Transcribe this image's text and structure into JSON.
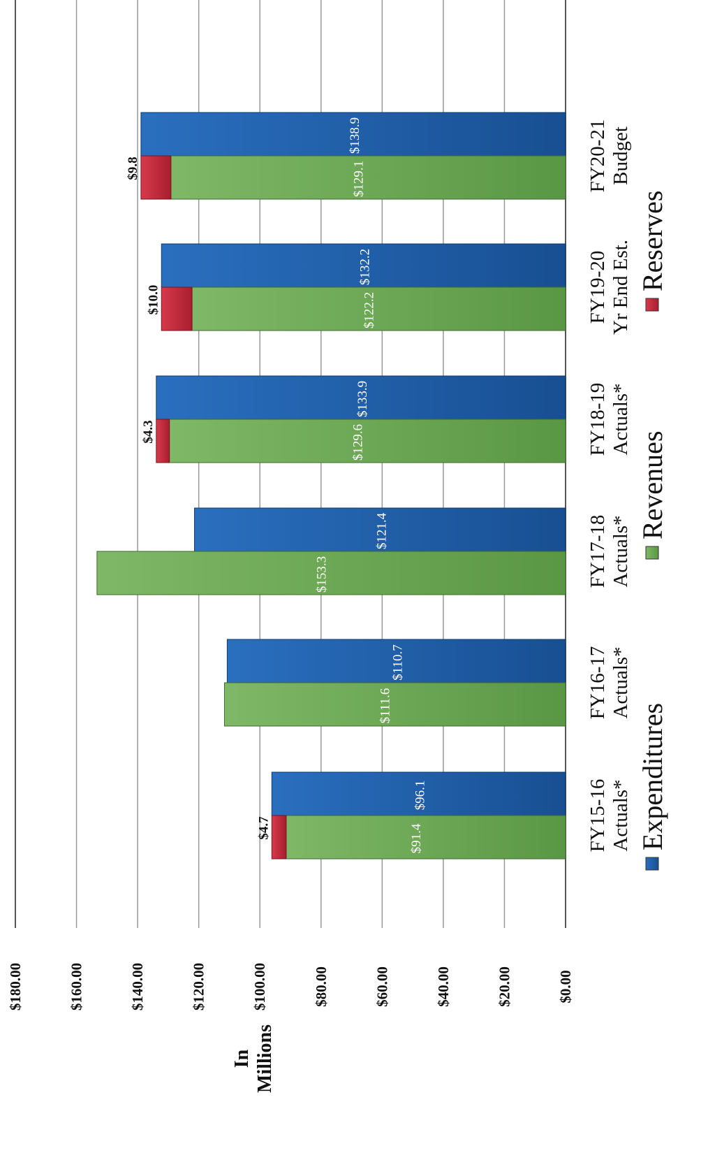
{
  "chart_data": {
    "type": "bar",
    "orientation": "vertical bars, image rotated 90 degrees counter-clockwise",
    "categories": [
      [
        "FY15-16",
        "Actuals*"
      ],
      [
        "FY16-17",
        "Actuals*"
      ],
      [
        "FY17-18",
        "Actuals*"
      ],
      [
        "FY18-19",
        "Actuals*"
      ],
      [
        "FY19-20",
        "Yr End Est."
      ],
      [
        "FY20-21",
        "Budget"
      ]
    ],
    "series": [
      {
        "name": "Expenditures",
        "color": "#1f5fa8",
        "values": [
          96.1,
          110.7,
          121.4,
          133.9,
          132.2,
          138.9
        ],
        "labels": [
          "$96.1",
          "$110.7",
          "$121.4",
          "$133.9",
          "$132.2",
          "$138.9"
        ]
      },
      {
        "name": "Revenues",
        "color": "#6aa84f",
        "values": [
          91.4,
          111.6,
          153.3,
          129.6,
          122.2,
          129.1
        ],
        "labels": [
          "$91.4",
          "$111.6",
          "$153.3",
          "$129.6",
          "$122.2",
          "$129.1"
        ]
      },
      {
        "name": "Reserves",
        "color": "#c8283a",
        "stacked_on": "Revenues",
        "values": [
          4.7,
          null,
          null,
          4.3,
          10.0,
          9.8
        ],
        "labels": [
          "$4.7",
          "",
          "",
          "$4.3",
          "$10.0",
          "$9.8"
        ]
      }
    ],
    "ylabel": "In Millions",
    "ylim": [
      0,
      180
    ],
    "yticks": [
      "$0.00",
      "$20.00",
      "$40.00",
      "$60.00",
      "$80.00",
      "$100.00",
      "$120.00",
      "$140.00",
      "$160.00",
      "$180.00"
    ],
    "grid": true,
    "legend_position": "bottom"
  }
}
